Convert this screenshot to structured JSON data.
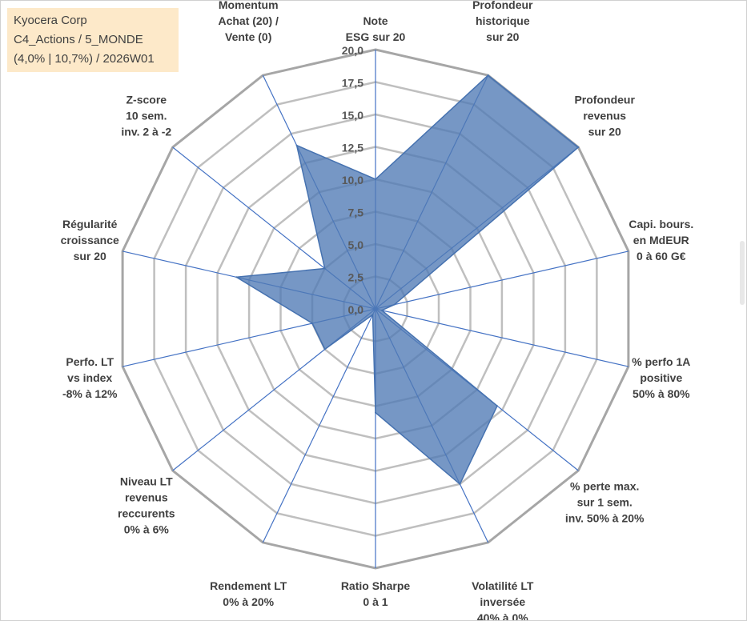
{
  "info_box": {
    "line1": "Kyocera Corp",
    "line2": "C4_Actions / 5_MONDE",
    "line3": "(4,0% | 10,7%) / 2026W01"
  },
  "colors": {
    "fill": "#4f7ab5",
    "stroke": "#4672b0",
    "spoke": "#4472c4",
    "ring": "#bfbfbf",
    "outer_ring": "#a6a6a6",
    "info_bg": "#fde9c9"
  },
  "chart_data": {
    "type": "radar",
    "title": "",
    "range": [
      0,
      20
    ],
    "tick_values": [
      0,
      2.5,
      5,
      7.5,
      10,
      12.5,
      15,
      17.5,
      20
    ],
    "tick_labels": [
      "0,0",
      "2,5",
      "5,0",
      "7,5",
      "10,0",
      "12,5",
      "15,0",
      "17,5",
      "20,0"
    ],
    "axes": [
      {
        "label": [
          "Note",
          "ESG sur 20"
        ],
        "value": 10
      },
      {
        "label": [
          "Profondeur",
          "historique",
          "sur 20"
        ],
        "value": 20
      },
      {
        "label": [
          "Profondeur",
          "revenus",
          "sur 20"
        ],
        "value": 20
      },
      {
        "label": [
          "Capi. bours.",
          "en MdEUR",
          "0 à 60 G€"
        ],
        "value": 1.5
      },
      {
        "label": [
          "% perfo 1A",
          "positive",
          "50% à 80%"
        ],
        "value": 0.5
      },
      {
        "label": [
          "% perte max.",
          "sur 1 sem.",
          "inv. 50% à 20%"
        ],
        "value": 12
      },
      {
        "label": [
          "Volatilité LT",
          "inversée",
          "40% à 0%"
        ],
        "value": 15
      },
      {
        "label": [
          "Ratio Sharpe",
          "0 à 1"
        ],
        "value": 8
      },
      {
        "label": [
          "Rendement LT",
          "0% à 20%"
        ],
        "value": 0.5
      },
      {
        "label": [
          "Niveau LT",
          "revenus",
          "reccurents",
          "0% à 6%"
        ],
        "value": 5
      },
      {
        "label": [
          "Perfo. LT",
          "vs index",
          "-8% à 12%"
        ],
        "value": 5
      },
      {
        "label": [
          "Régularité",
          "croissance",
          "sur 20"
        ],
        "value": 11
      },
      {
        "label": [
          "Z-score",
          "10 sem.",
          "inv. 2 à -2"
        ],
        "value": 5
      },
      {
        "label": [
          "Momentum",
          "Achat (20) /",
          "Vente (0)"
        ],
        "value": 14
      }
    ]
  }
}
